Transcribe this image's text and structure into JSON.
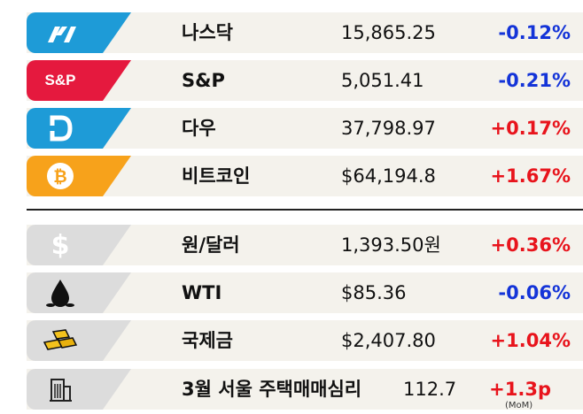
{
  "rows": [
    {
      "name": "나스닥",
      "value": "15,865.25",
      "change": "-0.12%",
      "direction": "down",
      "icon": "nasdaq-icon",
      "color": "#1e9bd7"
    },
    {
      "name": "S&P",
      "value": "5,051.41",
      "change": "-0.21%",
      "direction": "down",
      "icon": "sp-logo",
      "logo_text": "S&P",
      "color": "#e5193e"
    },
    {
      "name": "다우",
      "value": "37,798.97",
      "change": "+0.17%",
      "direction": "up",
      "icon": "dow-icon",
      "color": "#1e9bd7"
    },
    {
      "name": "비트코인",
      "value": "$64,194.8",
      "change": "+1.67%",
      "direction": "up",
      "icon": "bitcoin-icon",
      "color": "#f7a21b"
    },
    {
      "name": "원/달러",
      "value": "1,393.50원",
      "change": "+0.36%",
      "direction": "up",
      "icon": "dollar-icon",
      "color": "#dcdcdc"
    },
    {
      "name": "WTI",
      "value": "$85.36",
      "change": "-0.06%",
      "direction": "down",
      "icon": "oil-drop-icon",
      "color": "#dcdcdc"
    },
    {
      "name": "국제금",
      "value": "$2,407.80",
      "change": "+1.04%",
      "direction": "up",
      "icon": "gold-bars-icon",
      "color": "#dcdcdc"
    },
    {
      "name": "3월 서울 주택매매심리",
      "value": "112.7",
      "change": "+1.3p",
      "direction": "up",
      "icon": "building-icon",
      "color": "#dcdcdc",
      "note": "(MoM)"
    }
  ],
  "colors": {
    "down": "#1434d8",
    "up": "#e8141c",
    "row_bg": "#f4f2ec"
  }
}
